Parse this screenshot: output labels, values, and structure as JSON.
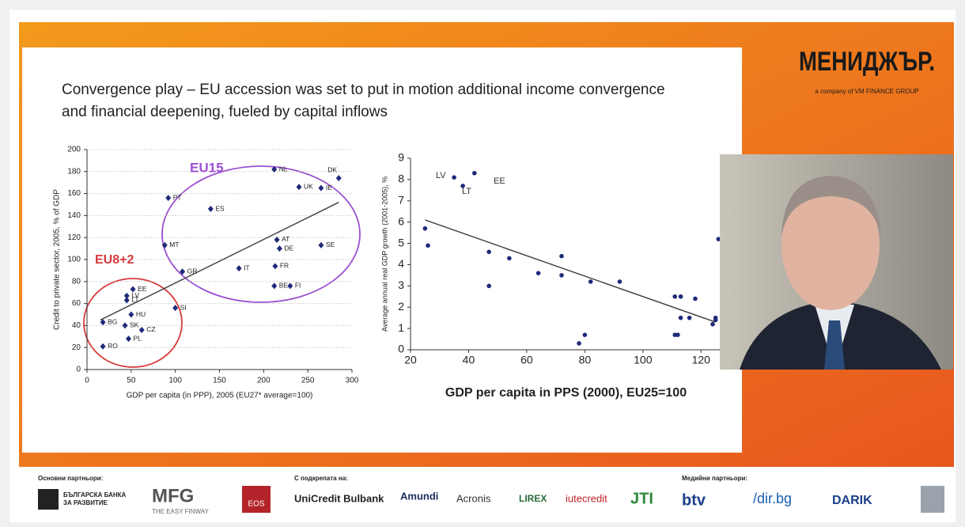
{
  "header": {
    "brand": "МЕНИДЖЪР.",
    "brand_sub": "a company of VM FINANCE GROUP"
  },
  "slide": {
    "title_lines": [
      "Convergence play – EU accession was set to put in motion additional income convergence",
      "and financial deepening, fueled by capital inflows"
    ]
  },
  "chart_data": [
    {
      "type": "scatter",
      "marker": "diamond",
      "color": "#1f2a7a",
      "x_label": "GDP per capita (in PPP), 2005 (EU27* average=100)",
      "y_label": "Credit to private sector, 2005, % of GDP",
      "x": [
        285,
        212,
        240,
        265,
        92,
        140,
        215,
        218,
        265,
        88,
        213,
        172,
        108,
        212,
        230,
        100,
        52,
        45,
        45,
        50,
        18,
        43,
        62,
        47,
        18
      ],
      "values": [
        174,
        182,
        166,
        165,
        156,
        146,
        118,
        110,
        113,
        113,
        94,
        92,
        89,
        76,
        76,
        56,
        73,
        67,
        63,
        50,
        43,
        40,
        36,
        28,
        21
      ],
      "point_labels": [
        "DK",
        "NL",
        "UK",
        "IE",
        "PT",
        "ES",
        "AT",
        "DE",
        "SE",
        "MT",
        "FR",
        "IT",
        "GR",
        "BE",
        "FI",
        "SI",
        "EE",
        "LV",
        "LT",
        "HU",
        "BG",
        "SK",
        "CZ",
        "PL",
        "RO"
      ],
      "xlim": [
        0,
        300
      ],
      "xticks": [
        0,
        50,
        100,
        150,
        200,
        250,
        300
      ],
      "ylim": [
        0,
        200
      ],
      "yticks": [
        0,
        20,
        40,
        60,
        80,
        100,
        120,
        140,
        160,
        180,
        200
      ],
      "grid": true,
      "trend": {
        "x": [
          15,
          285
        ],
        "y": [
          45,
          152
        ]
      },
      "annotations": [
        {
          "text": "EU15",
          "color": "#9b4fd1"
        },
        {
          "text": "EU8+2",
          "color": "#d63a3a"
        }
      ]
    },
    {
      "type": "scatter",
      "marker": "circle",
      "color": "#1f2a7a",
      "x_label": "GDP per capita in PPS (2000), EU25=100",
      "y_label": "Average annual real GDP growth (2001-2005), %",
      "x": [
        25,
        26,
        35,
        38,
        42,
        47,
        47,
        54,
        64,
        72,
        72,
        82,
        92,
        78,
        80,
        111,
        113,
        113,
        116,
        118,
        111,
        112,
        124,
        125,
        125,
        126
      ],
      "values": [
        5.7,
        4.9,
        8.1,
        7.7,
        8.3,
        4.6,
        3.0,
        4.3,
        3.6,
        4.4,
        3.5,
        3.2,
        3.2,
        0.3,
        0.7,
        2.5,
        2.5,
        1.5,
        1.5,
        2.4,
        0.7,
        0.7,
        1.2,
        1.4,
        1.5,
        5.2
      ],
      "xlim": [
        20,
        127
      ],
      "xticks": [
        20,
        40,
        60,
        80,
        100,
        120
      ],
      "ylim": [
        0,
        9
      ],
      "yticks": [
        0,
        1,
        2,
        3,
        4,
        5,
        6,
        7,
        8,
        9
      ],
      "grid": false,
      "trend": {
        "x": [
          25,
          125
        ],
        "y": [
          6.1,
          1.3
        ]
      },
      "annotations": [
        {
          "text": "LV",
          "color": "#333333"
        },
        {
          "text": "LT",
          "color": "#333333"
        },
        {
          "text": "EE",
          "color": "#333333"
        }
      ]
    }
  ],
  "footer": {
    "main_label": "Основни партньори:",
    "support_label": "С подкрепата на:",
    "media_label": "Медийни партньори:",
    "logos": [
      "БЪЛГАРСКА БАНКА",
      "ЗА РАЗВИТИЕ",
      "MFG",
      "THE EASY FINWAY",
      "EOS",
      "UniCredit Bulbank",
      "Amundi",
      "Acronis",
      "LIREX",
      "iutecredit",
      "JTI",
      "btv",
      "/dir.bg",
      "DARIK"
    ]
  }
}
